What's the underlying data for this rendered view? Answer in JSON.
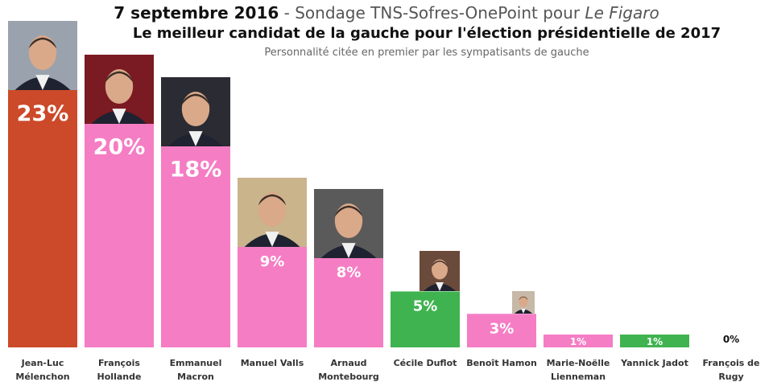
{
  "header": {
    "date": "7 septembre 2016",
    "separator": " - ",
    "poll_source": "Sondage TNS-Sofres-OnePoint pour ",
    "client": "Le Figaro",
    "title": "Le meilleur candidat de la gauche pour l'élection présidentielle de 2017",
    "subtitle": "Personnalité citée en premier par les sympatisants de gauche"
  },
  "chart_data": {
    "type": "bar",
    "title": "Le meilleur candidat de la gauche pour l'élection présidentielle de 2017",
    "subtitle": "Personnalité citée en premier par les sympatisants de gauche",
    "categories": [
      [
        "Jean-Luc",
        "Mélenchon"
      ],
      [
        "François",
        "Hollande"
      ],
      [
        "Emmanuel",
        "Macron"
      ],
      [
        "Manuel Valls"
      ],
      [
        "Arnaud",
        "Montebourg"
      ],
      [
        "Cécile Duflot"
      ],
      [
        "Benoît Hamon"
      ],
      [
        "Marie-Noëlle",
        "Lienneman"
      ],
      [
        "Yannick Jadot"
      ],
      [
        "François de",
        "Rugy"
      ]
    ],
    "values": [
      23,
      20,
      18,
      9,
      8,
      5,
      3,
      1,
      1,
      0
    ],
    "value_labels": [
      "23%",
      "20%",
      "18%",
      "9%",
      "8%",
      "5%",
      "3%",
      "1%",
      "1%",
      "0%"
    ],
    "colors": [
      "#cc4a2a",
      "#f57dc4",
      "#f57dc4",
      "#f57dc4",
      "#f57dc4",
      "#3fb34f",
      "#f57dc4",
      "#f57dc4",
      "#3fb34f",
      "#f57dc4"
    ],
    "has_photo": [
      true,
      true,
      true,
      true,
      true,
      true,
      true,
      false,
      false,
      false
    ],
    "ylim": [
      0,
      23
    ],
    "xlabel": "",
    "ylabel": "",
    "grid": false,
    "legend": "none"
  }
}
